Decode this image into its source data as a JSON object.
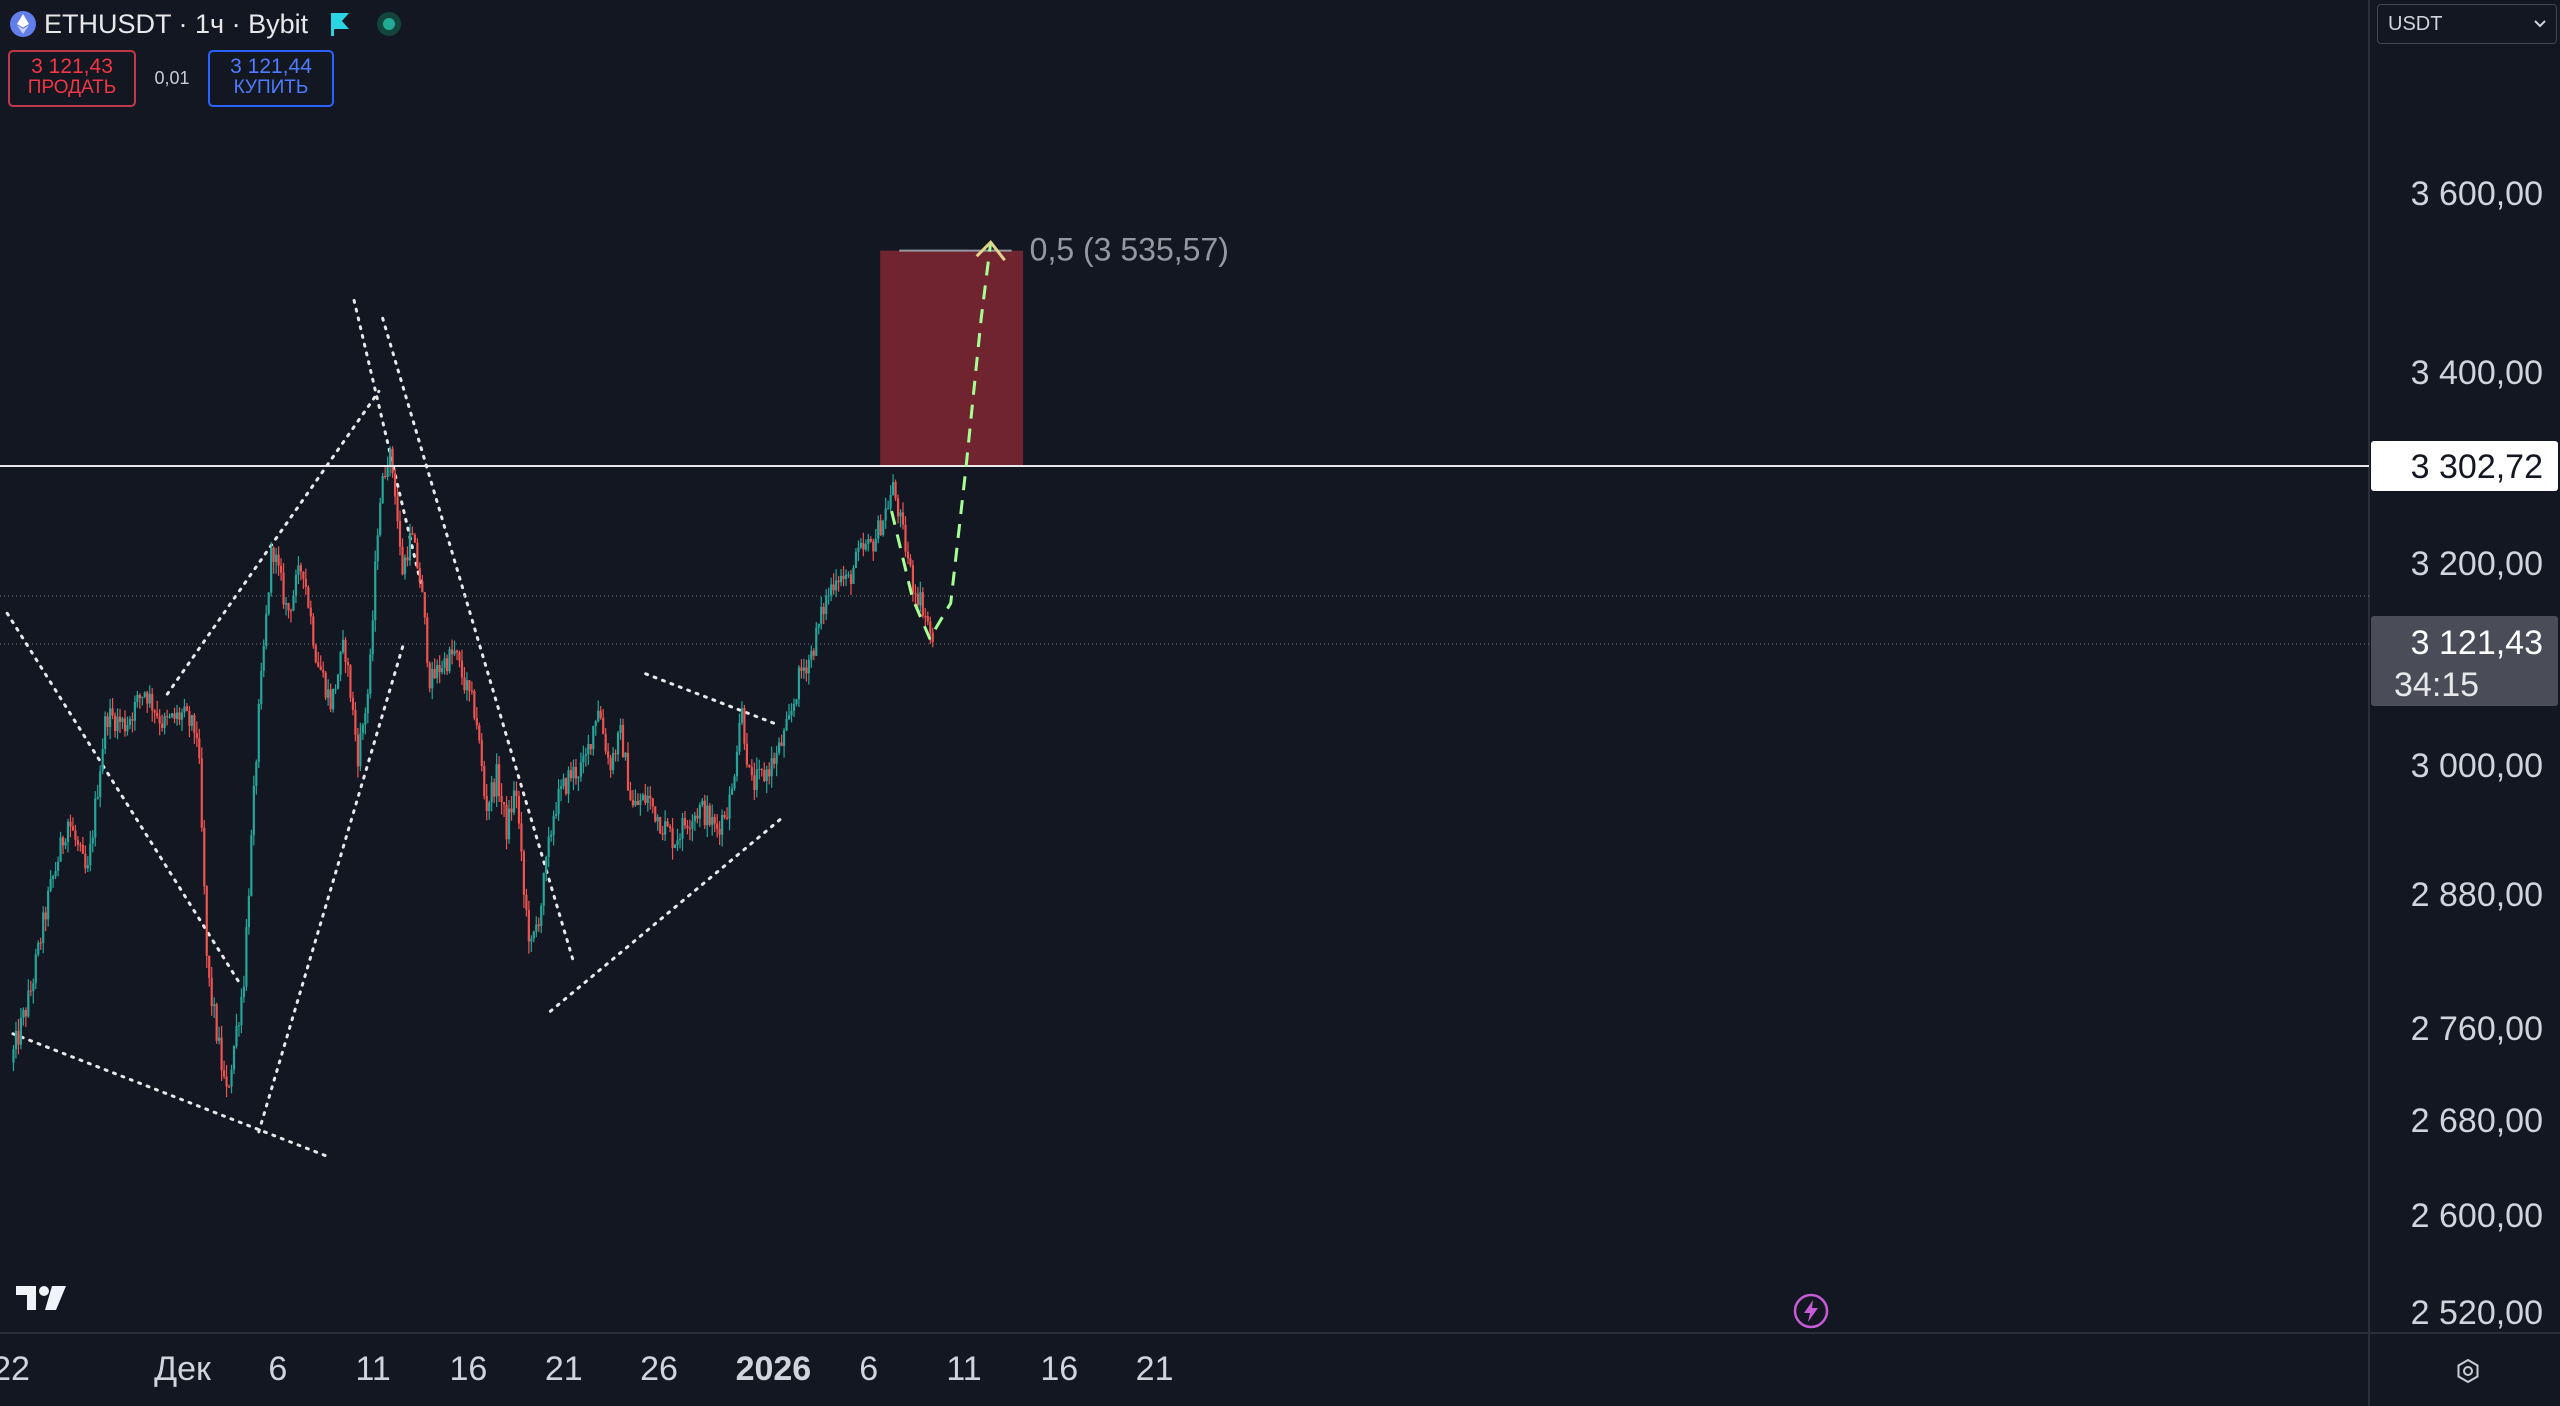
{
  "header": {
    "symbol_title": "ETHUSDT · 1ч · Bybit"
  },
  "trade": {
    "sell_price": "3 121,43",
    "sell_label": "ПРОДАТЬ",
    "spread": "0,01",
    "buy_price": "3 121,44",
    "buy_label": "КУПИТЬ"
  },
  "currency": {
    "value": "USDT"
  },
  "colors": {
    "background": "#131722",
    "candle_up": "#26a69a",
    "candle_down": "#ef5350",
    "target_box": "#7a2631",
    "projection": "#a6ff95",
    "axis_text": "#d1d4dc"
  },
  "icons": {
    "symbol": "ethereum-icon",
    "flag": "flag-icon",
    "status": "market-status-icon",
    "logo": "tradingview-logo",
    "bolt": "lightning-icon",
    "settings": "settings-icon"
  },
  "chart_data": {
    "type": "candlestick",
    "timeframe": "1ч",
    "price_ticks": [
      "3 600,00",
      "3 400,00",
      "3 200,00",
      "3 000,00",
      "2 880,00",
      "2 760,00",
      "2 680,00",
      "2 600,00",
      "2 520,00"
    ],
    "price_tick_values": [
      3600,
      3400,
      3200,
      3000,
      2880,
      2760,
      2680,
      2600,
      2520
    ],
    "time_ticks": [
      {
        "label": "22",
        "day": 22,
        "bold": false
      },
      {
        "label": "Дек",
        "day": 31,
        "bold": false
      },
      {
        "label": "6",
        "day": 36,
        "bold": false
      },
      {
        "label": "11",
        "day": 41,
        "bold": false
      },
      {
        "label": "16",
        "day": 46,
        "bold": false
      },
      {
        "label": "21",
        "day": 51,
        "bold": false
      },
      {
        "label": "26",
        "day": 56,
        "bold": false
      },
      {
        "label": "2026",
        "day": 62,
        "bold": true
      },
      {
        "label": "6",
        "day": 67,
        "bold": false
      },
      {
        "label": "11",
        "day": 72,
        "bold": false
      },
      {
        "label": "16",
        "day": 77,
        "bold": false
      },
      {
        "label": "21",
        "day": 82,
        "bold": false
      }
    ],
    "price_path": [
      [
        22.0,
        2730
      ],
      [
        23.0,
        2790
      ],
      [
        24.0,
        2880
      ],
      [
        25.0,
        2950
      ],
      [
        26.0,
        2895
      ],
      [
        27.0,
        3050
      ],
      [
        28.0,
        3040
      ],
      [
        29.0,
        3075
      ],
      [
        30.0,
        3040
      ],
      [
        31.0,
        3050
      ],
      [
        31.8,
        3030
      ],
      [
        32.3,
        2810
      ],
      [
        33.3,
        2700
      ],
      [
        34.2,
        2800
      ],
      [
        35.0,
        3050
      ],
      [
        35.7,
        3220
      ],
      [
        36.5,
        3150
      ],
      [
        37.3,
        3200
      ],
      [
        38.0,
        3110
      ],
      [
        38.8,
        3060
      ],
      [
        39.5,
        3120
      ],
      [
        40.2,
        3010
      ],
      [
        40.8,
        3080
      ],
      [
        41.3,
        3260
      ],
      [
        41.8,
        3320
      ],
      [
        42.1,
        3290
      ],
      [
        42.5,
        3190
      ],
      [
        43.0,
        3230
      ],
      [
        43.5,
        3180
      ],
      [
        44.0,
        3080
      ],
      [
        44.6,
        3100
      ],
      [
        45.3,
        3110
      ],
      [
        45.8,
        3080
      ],
      [
        46.4,
        3050
      ],
      [
        46.9,
        2960
      ],
      [
        47.5,
        2990
      ],
      [
        48.0,
        2940
      ],
      [
        48.5,
        2980
      ],
      [
        48.9,
        2880
      ],
      [
        49.3,
        2830
      ],
      [
        49.8,
        2870
      ],
      [
        50.5,
        2960
      ],
      [
        51.3,
        2990
      ],
      [
        52.1,
        3000
      ],
      [
        52.8,
        3060
      ],
      [
        53.4,
        3000
      ],
      [
        54.0,
        3030
      ],
      [
        54.6,
        2960
      ],
      [
        55.4,
        2970
      ],
      [
        56.0,
        2950
      ],
      [
        56.8,
        2930
      ],
      [
        57.5,
        2950
      ],
      [
        58.2,
        2960
      ],
      [
        59.0,
        2940
      ],
      [
        59.8,
        2970
      ],
      [
        60.3,
        3060
      ],
      [
        60.8,
        2980
      ],
      [
        61.5,
        2990
      ],
      [
        62.2,
        3010
      ],
      [
        62.8,
        3040
      ],
      [
        63.4,
        3090
      ],
      [
        64.0,
        3110
      ],
      [
        64.7,
        3160
      ],
      [
        65.3,
        3190
      ],
      [
        65.9,
        3180
      ],
      [
        66.5,
        3210
      ],
      [
        67.2,
        3220
      ],
      [
        67.8,
        3250
      ],
      [
        68.3,
        3280
      ],
      [
        68.8,
        3230
      ],
      [
        69.3,
        3180
      ],
      [
        69.8,
        3160
      ],
      [
        70.4,
        3120
      ]
    ],
    "last_price": 3121.43,
    "last_price_label": "3 121,43",
    "countdown_label": "34:15",
    "marked_price": 3302.72,
    "marked_price_label": "3 302,72",
    "fib_level": {
      "value": 3535.57,
      "label": "0,5 (3 535,57)",
      "x_from": 68.6,
      "x_to": 74.5
    },
    "target_box": {
      "x_from": 67.6,
      "x_to": 75.1,
      "price_from": 3302.72,
      "price_to": 3535.57
    },
    "trendlines": [
      {
        "points": [
          [
            21.8,
            3150
          ],
          [
            34.0,
            2800
          ]
        ]
      },
      {
        "points": [
          [
            22.1,
            2755
          ],
          [
            38.5,
            2650
          ]
        ]
      },
      {
        "points": [
          [
            30.2,
            3070
          ],
          [
            41.3,
            3380
          ]
        ]
      },
      {
        "points": [
          [
            35.0,
            2670
          ],
          [
            42.6,
            3120
          ]
        ]
      },
      {
        "points": [
          [
            40.0,
            3480
          ],
          [
            43.5,
            3180
          ]
        ]
      },
      {
        "points": [
          [
            41.5,
            3460
          ],
          [
            51.5,
            2820
          ]
        ]
      },
      {
        "points": [
          [
            50.3,
            2775
          ],
          [
            62.4,
            2950
          ]
        ]
      },
      {
        "points": [
          [
            55.3,
            3090
          ],
          [
            62.2,
            3040
          ]
        ]
      }
    ],
    "projection": [
      [
        68.2,
        3255
      ],
      [
        69.3,
        3165
      ],
      [
        70.2,
        3125
      ],
      [
        71.3,
        3160
      ],
      [
        72.1,
        3300
      ],
      [
        72.9,
        3460
      ],
      [
        73.4,
        3545
      ]
    ]
  }
}
